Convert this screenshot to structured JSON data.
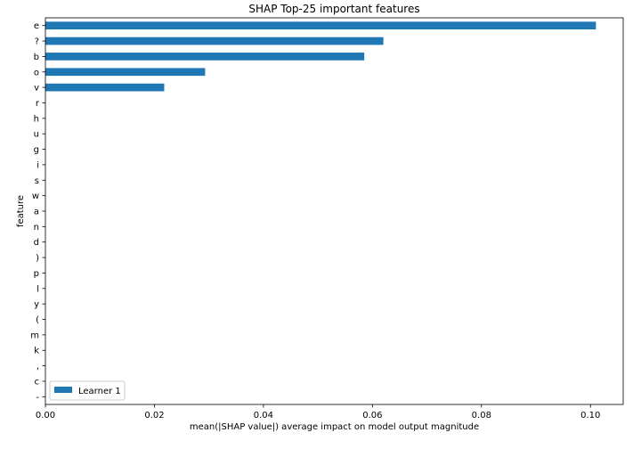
{
  "chart_data": {
    "type": "bar",
    "orientation": "horizontal",
    "title": "SHAP Top-25 important features",
    "xlabel": "mean(|SHAP value|) average impact on model output magnitude",
    "ylabel": "feature",
    "xlim": [
      0,
      0.106
    ],
    "x_ticks": [
      0.0,
      0.02,
      0.04,
      0.06,
      0.08,
      0.1
    ],
    "x_tick_labels": [
      "0.00",
      "0.02",
      "0.04",
      "0.06",
      "0.08",
      "0.10"
    ],
    "categories": [
      "e",
      "?",
      "b",
      "o",
      "v",
      "r",
      "h",
      "u",
      "g",
      "i",
      "s",
      "w",
      "a",
      "n",
      "d",
      ")",
      "p",
      "l",
      "y",
      "(",
      "m",
      "k",
      ",",
      "c",
      "-"
    ],
    "series": [
      {
        "name": "Learner 1",
        "color": "#1f77b4",
        "values": [
          0.101,
          0.062,
          0.0585,
          0.0293,
          0.0218,
          0,
          0,
          0,
          0,
          0,
          0,
          0,
          0,
          0,
          0,
          0,
          0,
          0,
          0,
          0,
          0,
          0,
          0,
          0,
          0
        ]
      }
    ],
    "grid": false,
    "legend": "lower-left"
  }
}
